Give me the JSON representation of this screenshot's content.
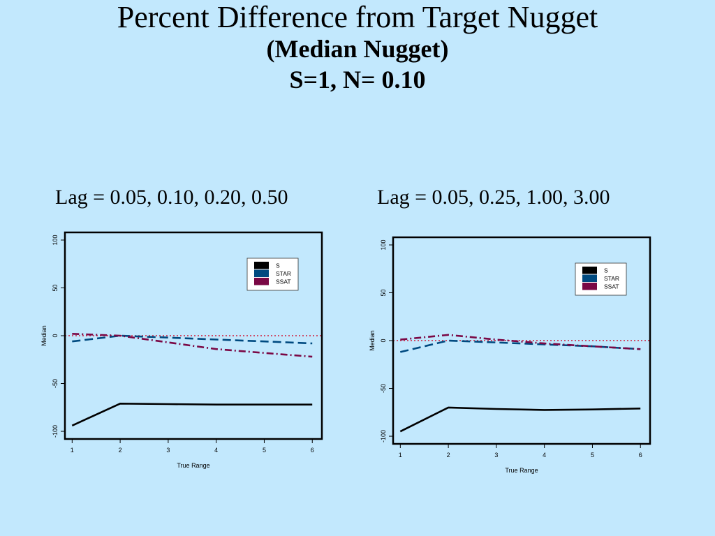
{
  "slide": {
    "title": "Percent Difference from Target Nugget",
    "subtitle_1": "(Median Nugget)",
    "subtitle_2": "S=1, N= 0.10"
  },
  "chart_data": [
    {
      "type": "line",
      "panel_title": "Lag = 0.05, 0.10, 0.20, 0.50",
      "xlabel": "True Range",
      "ylabel": "Median",
      "x": [
        1,
        2,
        3,
        4,
        5,
        6
      ],
      "xlim": [
        0.85,
        6.2
      ],
      "ylim": [
        -108,
        108
      ],
      "yticks": [
        -100,
        -50,
        0,
        50,
        100
      ],
      "reference_line": 0,
      "legend_position": "top-right",
      "series": [
        {
          "name": "S",
          "color": "#000000",
          "dash": "",
          "values": [
            -94,
            -71,
            -71.5,
            -72,
            -72,
            -72
          ]
        },
        {
          "name": "STAR",
          "color": "#004a80",
          "dash": "12,6",
          "values": [
            -6,
            0,
            -2,
            -4,
            -6,
            -8
          ]
        },
        {
          "name": "SSAT",
          "color": "#7a0845",
          "dash": "10,4,2,4",
          "values": [
            2,
            0,
            -7,
            -14,
            -18,
            -22
          ]
        }
      ]
    },
    {
      "type": "line",
      "panel_title": "Lag = 0.05, 0.25, 1.00, 3.00",
      "xlabel": "True Range",
      "ylabel": "Median",
      "x": [
        1,
        2,
        3,
        4,
        5,
        6
      ],
      "xlim": [
        0.85,
        6.2
      ],
      "ylim": [
        -108,
        108
      ],
      "yticks": [
        -100,
        -50,
        0,
        50,
        100
      ],
      "reference_line": 0,
      "legend_position": "top-right",
      "series": [
        {
          "name": "S",
          "color": "#000000",
          "dash": "",
          "values": [
            -95,
            -70,
            -71.5,
            -72.5,
            -72,
            -71
          ]
        },
        {
          "name": "STAR",
          "color": "#004a80",
          "dash": "12,6",
          "values": [
            -12,
            0,
            -2,
            -4,
            -6,
            -9
          ]
        },
        {
          "name": "SSAT",
          "color": "#7a0845",
          "dash": "10,4,2,4",
          "values": [
            1,
            6,
            1,
            -3,
            -6,
            -9
          ]
        }
      ]
    }
  ]
}
